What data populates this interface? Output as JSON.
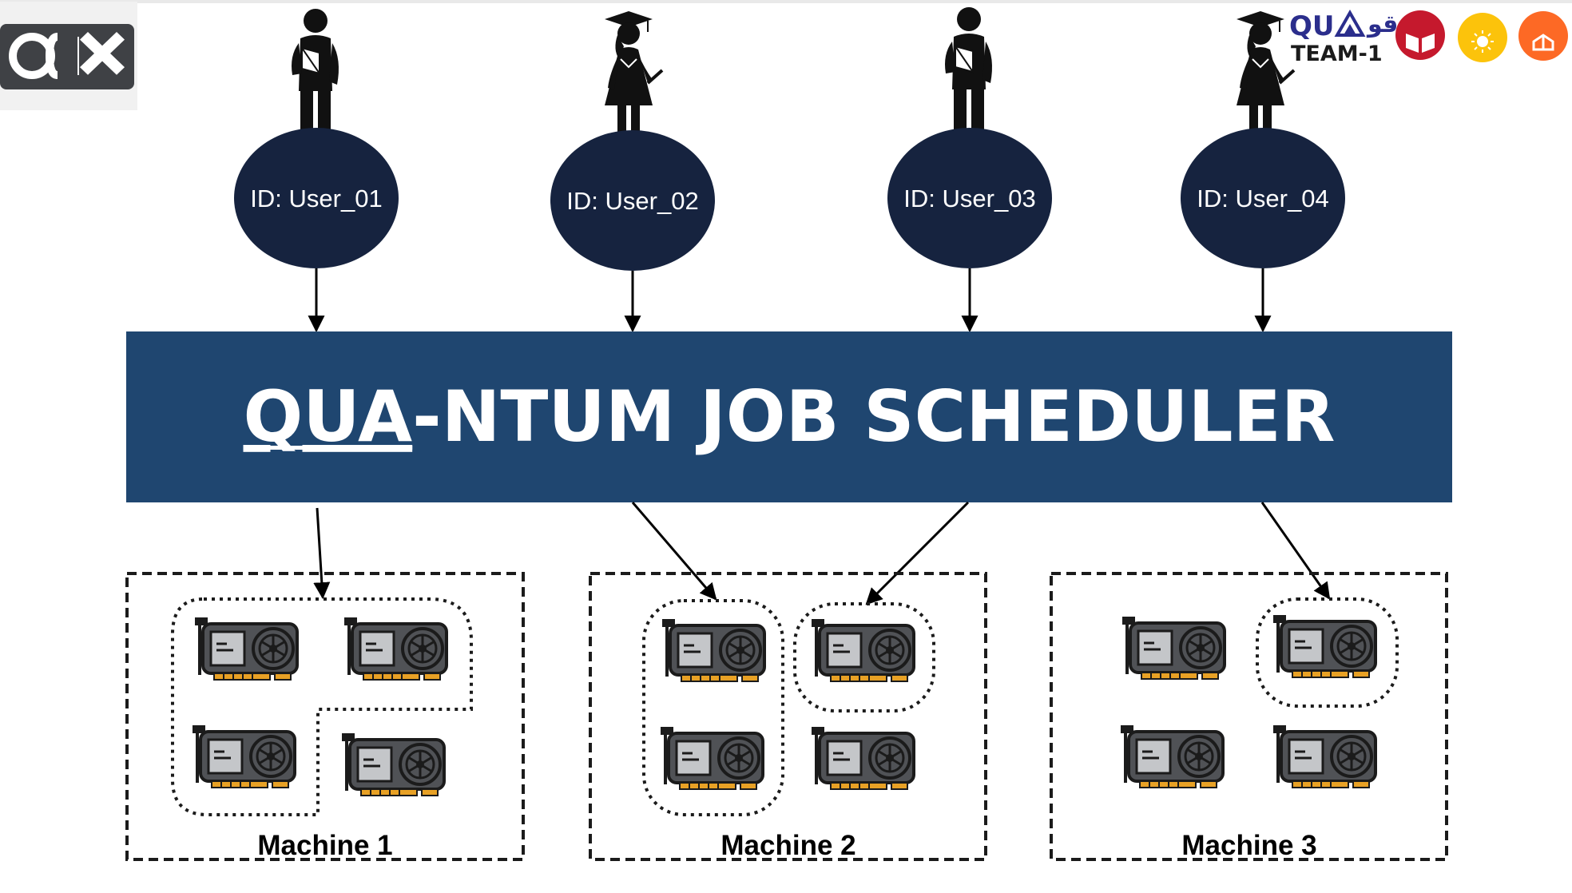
{
  "colors": {
    "node_fill": "#16233f",
    "scheduler_fill": "#1f4670",
    "text_light": "#ffffff",
    "border_dark": "#1b1b1b",
    "gpu_body": "#505256",
    "gpu_panel": "#c4c6c9",
    "gpu_pins": "#e8a125",
    "sdg4": "#c5192d",
    "sdg7": "#fcc30b",
    "sdg9": "#fd6925",
    "qu_blue": "#2b2e8c",
    "logo_bg": "#3f4145"
  },
  "logos": {
    "left_logo": "qcri-logo",
    "qu_text": "QU",
    "qu_arabic": "قو",
    "team_label": "TEAM-1",
    "sdg_badges": [
      "sdg-4-quality-education",
      "sdg-7-affordable-clean-energy",
      "sdg-9-industry-innovation"
    ]
  },
  "users": [
    {
      "label": "ID: User_01",
      "icon": "student-male-icon"
    },
    {
      "label": "ID: User_02",
      "icon": "graduate-female-icon"
    },
    {
      "label": "ID: User_03",
      "icon": "student-male-icon"
    },
    {
      "label": "ID: User_04",
      "icon": "graduate-female-icon"
    }
  ],
  "scheduler": {
    "title_underlined": "QUA",
    "title_rest": "-NTUM JOB SCHEDULER"
  },
  "machines": [
    {
      "label": "Machine 1",
      "gpu_count": 4
    },
    {
      "label": "Machine 2",
      "gpu_count": 4
    },
    {
      "label": "Machine 3",
      "gpu_count": 4
    }
  ]
}
